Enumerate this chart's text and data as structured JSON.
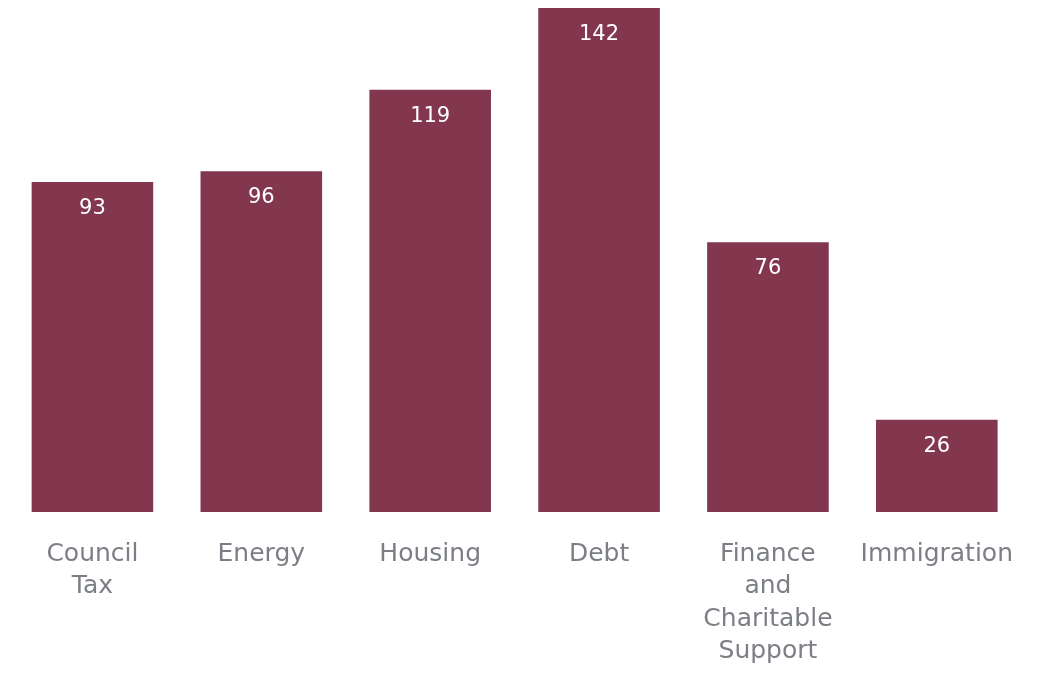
{
  "chart_data": {
    "type": "bar",
    "categories": [
      "Council Tax",
      "Energy",
      "Housing",
      "Debt",
      "Finance and Charitable Support",
      "Immigration"
    ],
    "values": [
      93,
      96,
      119,
      142,
      76,
      26
    ],
    "color": "#82374f",
    "data_labels": true,
    "grid": false,
    "legend": false
  }
}
